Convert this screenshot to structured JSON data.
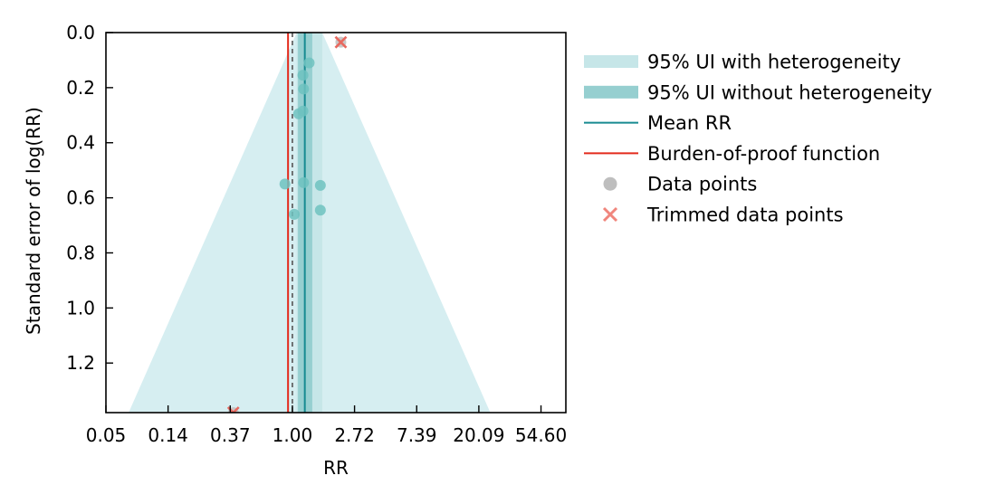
{
  "chart_data": {
    "type": "scatter",
    "subtype": "funnel",
    "xlabel": "RR",
    "ylabel": "Standard error of log(RR)",
    "x_scale": "log",
    "xlim_logRR": [
      -3.0,
      4.4
    ],
    "ylim": [
      1.38,
      0.0
    ],
    "y_inverted": true,
    "x_ticks": [
      {
        "logRR": -3,
        "label": "0.05"
      },
      {
        "logRR": -2,
        "label": "0.14"
      },
      {
        "logRR": -1,
        "label": "0.37"
      },
      {
        "logRR": 0,
        "label": "1.00"
      },
      {
        "logRR": 1,
        "label": "2.72"
      },
      {
        "logRR": 2,
        "label": "7.39"
      },
      {
        "logRR": 3,
        "label": "20.09"
      },
      {
        "logRR": 4,
        "label": "54.60"
      }
    ],
    "y_ticks": [
      {
        "value": 0.0,
        "label": "0.0"
      },
      {
        "value": 0.2,
        "label": "0.2"
      },
      {
        "value": 0.4,
        "label": "0.4"
      },
      {
        "value": 0.6,
        "label": "0.6"
      },
      {
        "value": 0.8,
        "label": "0.8"
      },
      {
        "value": 1.0,
        "label": "1.0"
      },
      {
        "value": 1.2,
        "label": "1.2"
      }
    ],
    "mean_logRR": 0.2,
    "burden_of_proof_logRR": -0.07,
    "null_logRR": 0.0,
    "ui_without_heterogeneity_logRR": [
      0.09,
      0.32
    ],
    "ui_with_heterogeneity_half_width_per_se": 1.96,
    "ui_with_heterogeneity_top_logRR": [
      0.07,
      0.48
    ],
    "data_points": [
      {
        "logRR": 0.27,
        "se": 0.11
      },
      {
        "logRR": 0.17,
        "se": 0.155
      },
      {
        "logRR": 0.18,
        "se": 0.205
      },
      {
        "logRR": 0.17,
        "se": 0.285
      },
      {
        "logRR": 0.1,
        "se": 0.295
      },
      {
        "logRR": -0.12,
        "se": 0.55
      },
      {
        "logRR": 0.18,
        "se": 0.545
      },
      {
        "logRR": 0.45,
        "se": 0.555
      },
      {
        "logRR": 0.45,
        "se": 0.645
      },
      {
        "logRR": 0.03,
        "se": 0.66
      }
    ],
    "trimmed_points": [
      {
        "logRR": 0.78,
        "se": 0.035
      },
      {
        "logRR": -0.95,
        "se": 1.38
      }
    ],
    "legend": {
      "position": "right",
      "entries": [
        {
          "key": "ui_het",
          "label": "95% UI with heterogeneity",
          "color": "#c6e6e8"
        },
        {
          "key": "ui_nohet",
          "label": "95% UI without heterogeneity",
          "color": "#96cfd0"
        },
        {
          "key": "mean",
          "label": "Mean RR",
          "color": "#178b91"
        },
        {
          "key": "bop",
          "label": "Burden-of-proof function",
          "color": "#e32a1c"
        },
        {
          "key": "data",
          "label": "Data points",
          "color": "#bebebe"
        },
        {
          "key": "trimmed",
          "label": "Trimmed data points",
          "color": "#f0857c"
        }
      ]
    },
    "colors": {
      "funnel_fill": "#d6eef1",
      "ui_het_band": "#c6e6e8",
      "ui_nohet_band": "#96cfd0",
      "mean_line": "#178b91",
      "bop_line": "#e32a1c",
      "null_line": "#555555",
      "data_point": "#6fc2c0",
      "trimmed_marker": "#e8685e",
      "trimmed_fill": "#c8c8c8"
    }
  }
}
